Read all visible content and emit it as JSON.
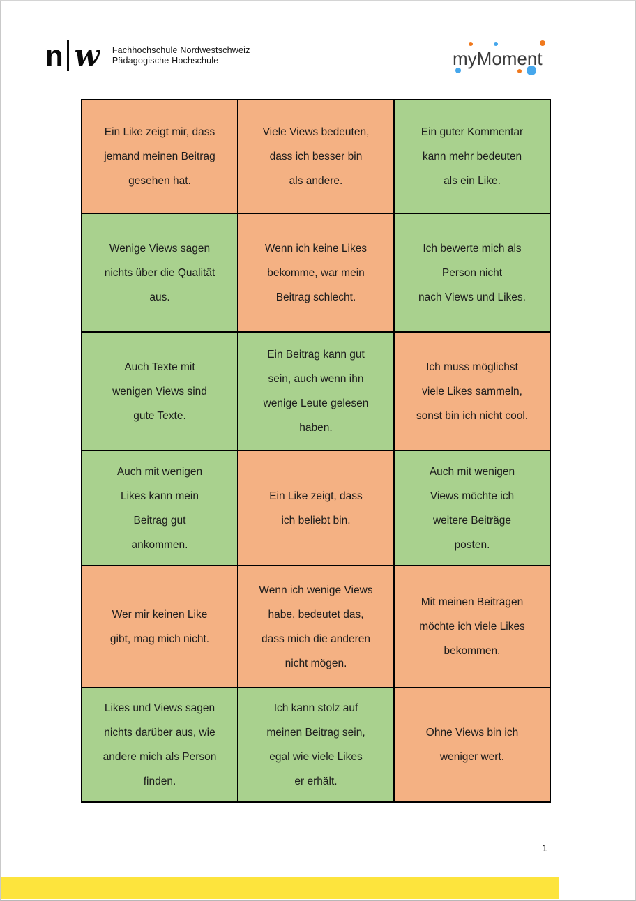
{
  "header": {
    "fhnw_logo": {
      "n": "n",
      "w": "w",
      "line1": "Fachhochschule Nordwestschweiz",
      "line2": "Pädagogische Hochschule"
    },
    "mymoment_logo": {
      "text": "myMoment",
      "orange": "#F0791D",
      "blue": "#46A7EC"
    }
  },
  "table": {
    "colors": {
      "orange": "#F4B183",
      "green": "#A9D18E"
    },
    "cells": [
      {
        "text": "Ein Like zeigt mir, dass\njemand meinen Beitrag\ngesehen hat.",
        "bg": "#F4B183"
      },
      {
        "text": "Viele Views bedeuten,\ndass ich besser bin\nals andere.",
        "bg": "#F4B183"
      },
      {
        "text": "Ein guter Kommentar\nkann mehr bedeuten\nals ein Like.",
        "bg": "#A9D18E"
      },
      {
        "text": "Wenige Views sagen\nnichts über die Qualität\naus.",
        "bg": "#A9D18E"
      },
      {
        "text": "Wenn ich keine Likes\nbekomme, war mein\nBeitrag schlecht.",
        "bg": "#F4B183"
      },
      {
        "text": "Ich bewerte mich als\nPerson nicht\nnach Views und Likes.",
        "bg": "#A9D18E"
      },
      {
        "text": "Auch Texte mit\nwenigen Views sind\ngute Texte.",
        "bg": "#A9D18E"
      },
      {
        "text": "Ein Beitrag kann gut\nsein, auch wenn ihn\nwenige Leute gelesen\nhaben.",
        "bg": "#A9D18E"
      },
      {
        "text": "Ich muss möglichst\nviele Likes sammeln,\nsonst bin ich nicht cool.",
        "bg": "#F4B183"
      },
      {
        "text": "Auch mit wenigen\nLikes kann mein\nBeitrag gut\nankommen.",
        "bg": "#A9D18E"
      },
      {
        "text": "Ein Like zeigt, dass\nich beliebt bin.",
        "bg": "#F4B183"
      },
      {
        "text": "Auch mit wenigen\nViews möchte ich\nweitere Beiträge\nposten.",
        "bg": "#A9D18E"
      },
      {
        "text": "Wer mir keinen Like\ngibt, mag mich nicht.",
        "bg": "#F4B183"
      },
      {
        "text": "Wenn ich wenige Views\nhabe, bedeutet das,\ndass mich die anderen\nnicht mögen.",
        "bg": "#F4B183"
      },
      {
        "text": "Mit meinen Beiträgen\nmöchte ich viele Likes\nbekommen.",
        "bg": "#F4B183"
      },
      {
        "text": "Likes und Views sagen\nnichts darüber aus, wie\nandere mich als Person\nfinden.",
        "bg": "#A9D18E"
      },
      {
        "text": "Ich kann stolz auf\nmeinen Beitrag sein,\negal wie viele Likes\ner erhält.",
        "bg": "#A9D18E"
      },
      {
        "text": "Ohne Views bin ich\nweniger wert.",
        "bg": "#F4B183"
      }
    ]
  },
  "footer": {
    "page_number": "1",
    "highlight_color": "#FDE43D"
  }
}
